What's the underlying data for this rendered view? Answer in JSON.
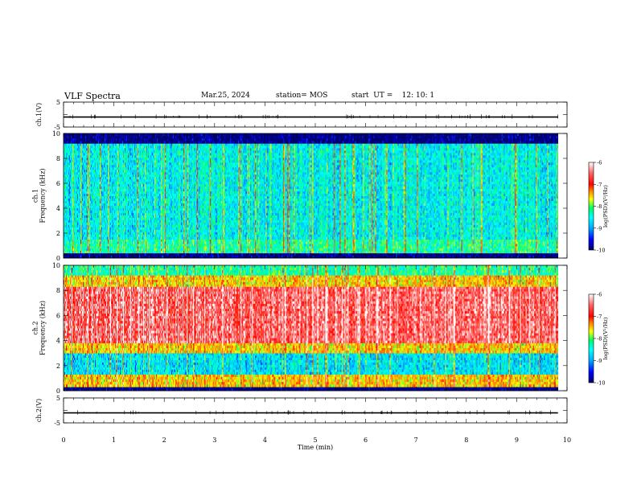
{
  "header": {
    "title": "VLF Spectra",
    "date": "Mar.25, 2024",
    "station": "station= MOS",
    "start": "start  UT =    12: 10: 1"
  },
  "chart_data": [
    {
      "type": "line",
      "panel": "ch1-waveform",
      "ylabel": "ch.1(V)",
      "ylim": [
        -5,
        5
      ],
      "yticks": [
        5,
        0,
        -5
      ],
      "ytick_labels": [
        "5",
        "",
        "-5"
      ],
      "xlim": [
        0,
        10
      ],
      "series": [
        {
          "values_summary": "near-flat trace at about -1 V with sparse small spikes",
          "level": -1
        }
      ]
    },
    {
      "type": "heatmap",
      "panel": "ch1-spectrogram",
      "ylabel": "ch.1\nFrequency (kHz)",
      "xlabel": "",
      "xlim": [
        0,
        10
      ],
      "ylim": [
        0,
        10
      ],
      "yticks": [
        0,
        2,
        4,
        6,
        8,
        10
      ],
      "data_extent_min": [
        0,
        9.82
      ],
      "colorbar": {
        "label": "log(PSD)(V²/Hz)",
        "range": [
          -10,
          -6
        ],
        "ticks": [
          -10,
          -9,
          -8,
          -7,
          -6
        ]
      },
      "bands": [
        {
          "freq_khz": [
            0,
            0.4
          ],
          "level": -10
        },
        {
          "freq_khz": [
            0.4,
            1.5
          ],
          "level": -8.4
        },
        {
          "freq_khz": [
            1.5,
            9.2
          ],
          "level": -8.7
        },
        {
          "freq_khz": [
            9.2,
            10
          ],
          "level": -10
        }
      ]
    },
    {
      "type": "heatmap",
      "panel": "ch2-spectrogram",
      "ylabel": "ch.2\nFrequency (kHz)",
      "xlabel": "",
      "xlim": [
        0,
        10
      ],
      "ylim": [
        0,
        10
      ],
      "yticks": [
        0,
        2,
        4,
        6,
        8,
        10
      ],
      "data_extent_min": [
        0,
        9.82
      ],
      "colorbar": {
        "label": "log(PSD)(V²/Hz)",
        "range": [
          -10,
          -6
        ],
        "ticks": [
          -10,
          -9,
          -8,
          -7,
          -6
        ]
      },
      "bands": [
        {
          "freq_khz": [
            0,
            0.3
          ],
          "level": -10
        },
        {
          "freq_khz": [
            0.3,
            1.3
          ],
          "level": -7.6
        },
        {
          "freq_khz": [
            1.3,
            3.0
          ],
          "level": -8.8
        },
        {
          "freq_khz": [
            3.0,
            3.8
          ],
          "level": -7.6
        },
        {
          "freq_khz": [
            3.8,
            8.3
          ],
          "level": -6.5
        },
        {
          "freq_khz": [
            8.3,
            9.2
          ],
          "level": -7.6
        },
        {
          "freq_khz": [
            9.2,
            10
          ],
          "level": -8.4
        }
      ]
    },
    {
      "type": "line",
      "panel": "ch2-waveform",
      "ylabel": "ch.2(V)",
      "ylim": [
        -5,
        5
      ],
      "yticks": [
        5,
        0,
        -5
      ],
      "ytick_labels": [
        "5",
        "",
        "-5"
      ],
      "xlim": [
        0,
        10
      ],
      "xlabel": "Time (min)",
      "xticks": [
        0,
        1,
        2,
        3,
        4,
        5,
        6,
        7,
        8,
        9,
        10
      ],
      "series": [
        {
          "values_summary": "near-flat trace at about -1 V with sparse small spikes",
          "level": -1
        }
      ]
    }
  ],
  "colors": {
    "colormap": [
      "#000066",
      "#0000ff",
      "#00aaff",
      "#00ffff",
      "#00ff66",
      "#ffff00",
      "#ff8800",
      "#ff0000",
      "#ff6666",
      "#ffffff"
    ]
  }
}
